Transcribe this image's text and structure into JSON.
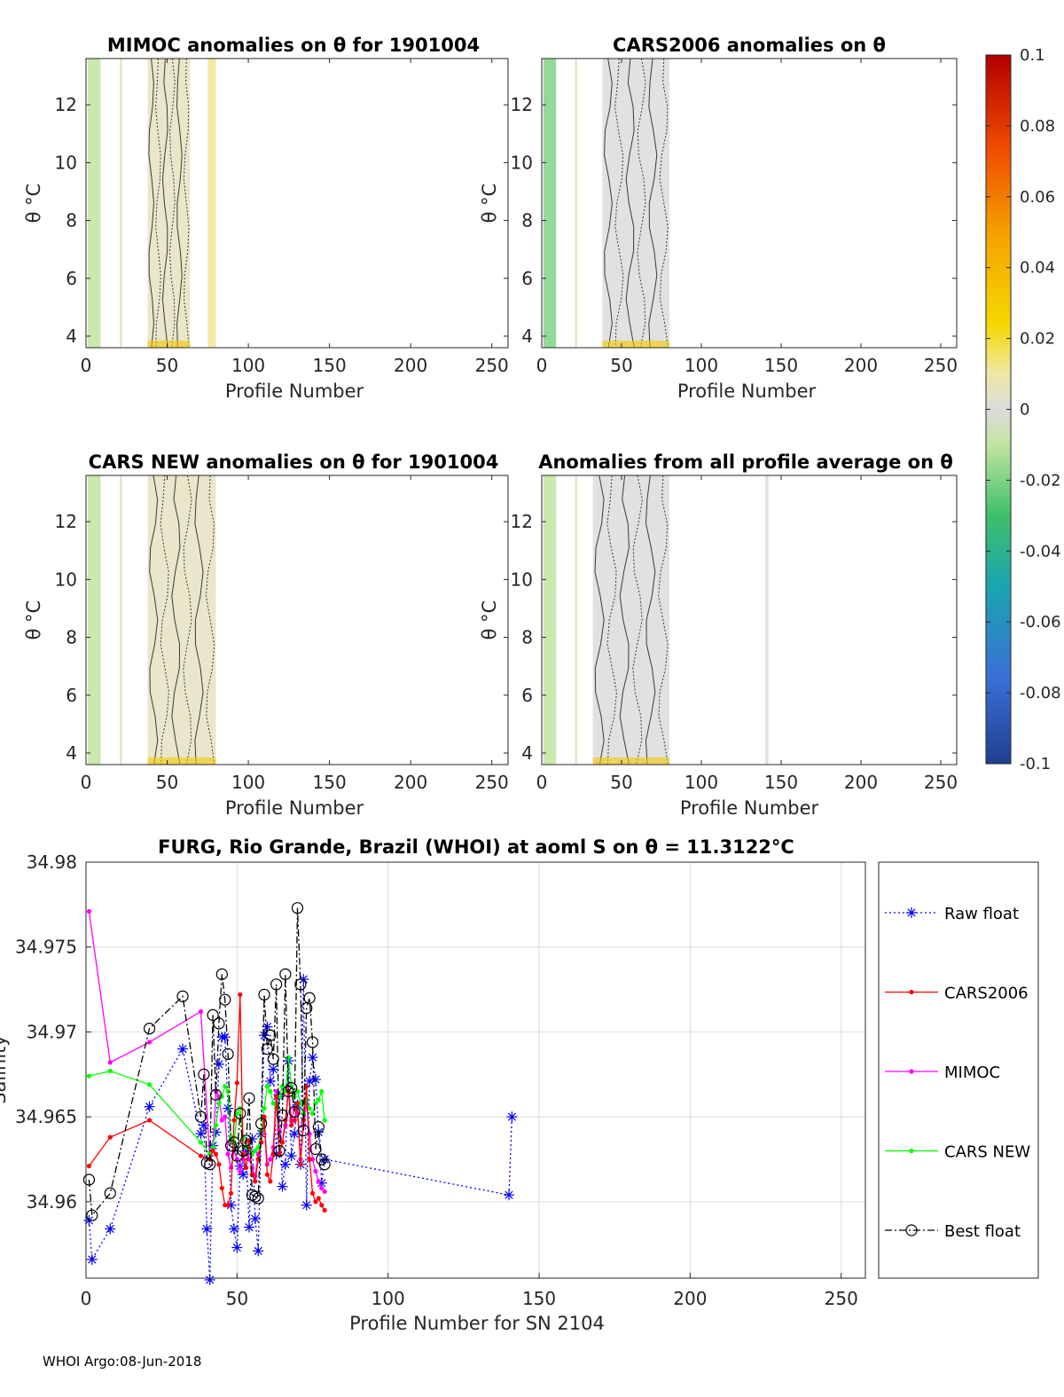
{
  "footer": "WHOI Argo:08-Jun-2018",
  "colors": {
    "raw_float": "#0000ff",
    "cars2006": "#ff0000",
    "mimoc": "#ff00ff",
    "cars_new": "#00ff00",
    "best_float": "#000000",
    "axis": "#262626",
    "grid": "#dcdcdc"
  },
  "colorbar": {
    "ticks": [
      "0.1",
      "0.08",
      "0.06",
      "0.04",
      "0.02",
      "0",
      "-0.02",
      "-0.04",
      "-0.06",
      "-0.08",
      "-0.1"
    ],
    "range": [
      -0.1,
      0.1
    ]
  },
  "chart_data": [
    {
      "type": "heatmap",
      "title": "MIMOC anomalies on θ  for 1901004",
      "xlabel": "Profile Number",
      "ylabel": "θ °C",
      "xlim": [
        0,
        260
      ],
      "ylim": [
        3.6,
        13.6
      ],
      "xticks": [
        "0",
        "50",
        "100",
        "150",
        "200",
        "250"
      ],
      "yticks": [
        "4",
        "6",
        "8",
        "10",
        "12"
      ],
      "data_blocks": [
        {
          "x0": 1,
          "x1": 8,
          "y0": 3.6,
          "y1": 13.6,
          "value": -0.01
        },
        {
          "x0": 8,
          "x1": 9,
          "y0": 3.6,
          "y1": 13.6,
          "value": -0.01
        },
        {
          "x0": 21,
          "x1": 22,
          "y0": 3.6,
          "y1": 13.6,
          "value": -0.01
        },
        {
          "x0": 38,
          "x1": 64,
          "y0": 3.6,
          "y1": 13.6,
          "value": 0.005
        },
        {
          "x0": 75,
          "x1": 80,
          "y0": 3.6,
          "y1": 13.6,
          "value": 0.012
        }
      ]
    },
    {
      "type": "heatmap",
      "title": "CARS2006 anomalies on θ",
      "xlabel": "Profile Number",
      "ylabel": "θ °C",
      "xlim": [
        0,
        260
      ],
      "ylim": [
        3.6,
        13.6
      ],
      "xticks": [
        "0",
        "50",
        "100",
        "150",
        "200",
        "250"
      ],
      "yticks": [
        "4",
        "6",
        "8",
        "10",
        "12"
      ],
      "data_blocks": [
        {
          "x0": 1,
          "x1": 9,
          "y0": 3.6,
          "y1": 13.6,
          "value": -0.02
        },
        {
          "x0": 21,
          "x1": 22,
          "y0": 3.6,
          "y1": 13.6,
          "value": -0.01
        },
        {
          "x0": 38,
          "x1": 80,
          "y0": 3.6,
          "y1": 13.6,
          "value": 0.0
        }
      ]
    },
    {
      "type": "heatmap",
      "title": "CARS NEW anomalies on θ for 1901004",
      "xlabel": "Profile Number",
      "ylabel": "θ °C",
      "xlim": [
        0,
        260
      ],
      "ylim": [
        3.6,
        13.6
      ],
      "xticks": [
        "0",
        "50",
        "100",
        "150",
        "200",
        "250"
      ],
      "yticks": [
        "4",
        "6",
        "8",
        "10",
        "12"
      ],
      "data_blocks": [
        {
          "x0": 1,
          "x1": 9,
          "y0": 3.6,
          "y1": 13.6,
          "value": -0.01
        },
        {
          "x0": 21,
          "x1": 22,
          "y0": 3.6,
          "y1": 13.6,
          "value": -0.01
        },
        {
          "x0": 38,
          "x1": 80,
          "y0": 3.6,
          "y1": 13.6,
          "value": 0.005
        }
      ]
    },
    {
      "type": "heatmap",
      "title": "Anomalies from all profile average on θ",
      "xlabel": "Profile Number",
      "ylabel": "θ °C",
      "xlim": [
        0,
        260
      ],
      "ylim": [
        3.6,
        13.6
      ],
      "xticks": [
        "0",
        "50",
        "100",
        "150",
        "200",
        "250"
      ],
      "yticks": [
        "4",
        "6",
        "8",
        "10",
        "12"
      ],
      "data_blocks": [
        {
          "x0": 1,
          "x1": 9,
          "y0": 3.6,
          "y1": 13.6,
          "value": -0.01
        },
        {
          "x0": 21,
          "x1": 22,
          "y0": 3.6,
          "y1": 13.6,
          "value": -0.01
        },
        {
          "x0": 32,
          "x1": 80,
          "y0": 3.6,
          "y1": 13.6,
          "value": 0.0
        },
        {
          "x0": 140,
          "x1": 142,
          "y0": 3.6,
          "y1": 13.6,
          "value": 0.0
        }
      ]
    },
    {
      "type": "line",
      "title": "FURG, Rio Grande, Brazil (WHOI) at aoml S on θ = 11.3122°C",
      "xlabel": "Profile Number for SN 2104",
      "ylabel": "Salinity",
      "xlim": [
        0,
        258
      ],
      "ylim": [
        34.9555,
        34.98
      ],
      "xticks": [
        "0",
        "50",
        "100",
        "150",
        "200",
        "250"
      ],
      "yticks": [
        "34.96",
        "34.965",
        "34.97",
        "34.975",
        "34.98"
      ],
      "legend": [
        "Raw float",
        "CARS2006",
        "MIMOC",
        "CARS NEW",
        "Best float"
      ],
      "series": [
        {
          "name": "Raw float",
          "x": [
            1,
            2,
            8,
            21,
            32,
            38,
            39,
            40,
            41,
            42,
            43,
            44,
            45,
            46,
            47,
            48,
            49,
            50,
            51,
            52,
            53,
            54,
            55,
            56,
            57,
            58,
            59,
            60,
            61,
            62,
            63,
            64,
            65,
            66,
            67,
            68,
            69,
            70,
            71,
            72,
            73,
            74,
            75,
            76,
            77,
            78,
            79,
            140,
            141
          ],
          "y": [
            34.9589,
            34.9566,
            34.9584,
            34.9656,
            34.969,
            34.964,
            34.9645,
            34.9584,
            34.9554,
            34.9633,
            34.9641,
            34.9681,
            34.9697,
            34.9697,
            34.9655,
            34.9598,
            34.9584,
            34.9573,
            34.9621,
            34.9616,
            34.963,
            34.9585,
            34.9637,
            34.959,
            34.9571,
            34.964,
            34.9698,
            34.9703,
            34.9671,
            34.9678,
            34.9628,
            34.9662,
            34.9609,
            34.9622,
            34.9683,
            34.9627,
            34.964,
            34.9657,
            34.9622,
            34.9731,
            34.9598,
            34.9671,
            34.9685,
            34.9672,
            34.9641,
            34.9611,
            34.9625,
            34.9604,
            34.965
          ]
        },
        {
          "name": "CARS2006",
          "x": [
            1,
            8,
            21,
            38,
            41,
            42,
            43,
            44,
            45,
            46,
            47,
            48,
            49,
            50,
            51,
            52,
            53,
            54,
            55,
            56,
            57,
            58,
            59,
            60,
            61,
            62,
            63,
            64,
            65,
            66,
            67,
            68,
            69,
            70,
            71,
            72,
            73,
            74,
            75,
            76,
            77,
            78,
            79
          ],
          "y": [
            34.9621,
            34.9638,
            34.9648,
            34.9627,
            34.9625,
            34.963,
            34.9628,
            34.9622,
            34.9608,
            34.9598,
            34.9598,
            34.9605,
            34.9648,
            34.967,
            34.9722,
            34.9628,
            34.962,
            34.9636,
            34.9616,
            34.9612,
            34.9625,
            34.9635,
            34.965,
            34.9616,
            34.9612,
            34.9628,
            34.9662,
            34.9628,
            34.9635,
            34.9648,
            34.9665,
            34.9645,
            34.9648,
            34.9658,
            34.9622,
            34.9648,
            34.9668,
            34.9625,
            34.9605,
            34.96,
            34.9602,
            34.9598,
            34.9595
          ]
        },
        {
          "name": "MIMOC",
          "x": [
            1,
            8,
            21,
            38,
            41,
            42,
            43,
            44,
            45,
            46,
            47,
            48,
            49,
            50,
            51,
            52,
            53,
            54,
            55,
            56,
            57,
            58,
            59,
            60,
            61,
            62,
            63,
            64,
            65,
            66,
            67,
            68,
            69,
            70,
            71,
            72,
            73,
            74,
            75,
            76,
            77,
            78,
            79
          ],
          "y": [
            34.9771,
            34.9682,
            34.9694,
            34.9712,
            34.9625,
            34.963,
            34.9665,
            34.9662,
            34.9648,
            34.965,
            34.9628,
            34.962,
            34.963,
            34.9625,
            34.9618,
            34.9625,
            34.9635,
            34.9625,
            34.962,
            34.9615,
            34.9628,
            34.9635,
            34.9648,
            34.9622,
            34.9625,
            34.9632,
            34.9665,
            34.9642,
            34.9635,
            34.9645,
            34.9668,
            34.9648,
            34.9655,
            34.9652,
            34.9625,
            34.9645,
            34.9658,
            34.964,
            34.9625,
            34.9618,
            34.9612,
            34.9608,
            34.9606
          ]
        },
        {
          "name": "CARS NEW",
          "x": [
            1,
            8,
            21,
            38,
            41,
            42,
            43,
            44,
            45,
            46,
            47,
            48,
            49,
            50,
            51,
            52,
            53,
            54,
            55,
            56,
            57,
            58,
            59,
            60,
            61,
            62,
            63,
            64,
            65,
            66,
            67,
            68,
            69,
            70,
            71,
            72,
            73,
            74,
            75,
            76,
            77,
            78,
            79
          ],
          "y": [
            34.9674,
            34.9677,
            34.9669,
            34.9635,
            34.9628,
            34.9632,
            34.9645,
            34.9658,
            34.9662,
            34.9668,
            34.9665,
            34.9638,
            34.9635,
            34.9652,
            34.9655,
            34.9638,
            34.9632,
            34.9635,
            34.9628,
            34.963,
            34.9632,
            34.9642,
            34.9655,
            34.9668,
            34.9665,
            34.9658,
            34.9655,
            34.9662,
            34.9668,
            34.9665,
            34.9685,
            34.9668,
            34.9662,
            34.9665,
            34.9658,
            34.9652,
            34.966,
            34.9655,
            34.9652,
            34.9658,
            34.966,
            34.9665,
            34.9648
          ]
        },
        {
          "name": "Best float",
          "x": [
            1,
            2,
            8,
            21,
            32,
            38,
            39,
            40,
            41,
            42,
            43,
            44,
            45,
            46,
            47,
            48,
            49,
            50,
            51,
            52,
            53,
            54,
            55,
            56,
            57,
            58,
            59,
            60,
            61,
            62,
            63,
            64,
            65,
            66,
            67,
            68,
            69,
            70,
            71,
            72,
            73,
            74,
            75,
            76,
            77,
            78,
            79
          ],
          "y": [
            34.9613,
            34.9592,
            34.9605,
            34.9702,
            34.9721,
            34.965,
            34.9675,
            34.9623,
            34.9622,
            34.971,
            34.9663,
            34.9705,
            34.9734,
            34.9719,
            34.9687,
            34.9633,
            34.9635,
            34.9627,
            34.9652,
            34.963,
            34.9636,
            34.9661,
            34.9604,
            34.9603,
            34.9602,
            34.9646,
            34.9722,
            34.969,
            34.9698,
            34.9684,
            34.9728,
            34.963,
            34.9651,
            34.9734,
            34.9665,
            34.9667,
            34.9653,
            34.9773,
            34.9728,
            34.9642,
            34.9714,
            34.972,
            34.9694,
            34.9631,
            34.9644,
            34.9625,
            34.9622
          ]
        }
      ]
    }
  ]
}
